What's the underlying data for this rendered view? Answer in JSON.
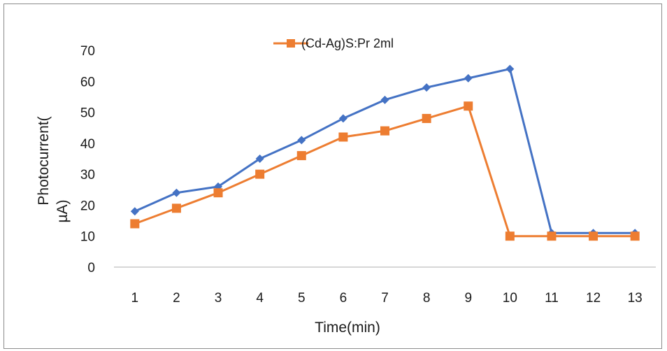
{
  "chart_data": {
    "type": "line",
    "title": "",
    "xlabel": "Time(min)",
    "ylabel": "Photocurrent( µA)",
    "ylabel_lines": [
      "Photocurrent(",
      "µA)"
    ],
    "categories": [
      "1",
      "2",
      "3",
      "4",
      "5",
      "6",
      "7",
      "8",
      "9",
      "10",
      "11",
      "12",
      "13"
    ],
    "ylim": [
      0,
      70
    ],
    "yticks": [
      0,
      10,
      20,
      30,
      40,
      50,
      60,
      70
    ],
    "grid": false,
    "legend_position": "top",
    "series": [
      {
        "name": "",
        "color": "#4472c4",
        "marker": "diamond",
        "values": [
          18,
          24,
          26,
          35,
          41,
          48,
          54,
          58,
          61,
          64,
          11,
          11,
          11
        ]
      },
      {
        "name": "(Cd-Ag)S:Pr 2ml",
        "color": "#ed7d31",
        "marker": "square",
        "values": [
          14,
          19,
          24,
          30,
          36,
          42,
          44,
          48,
          52,
          10,
          10,
          10,
          10
        ]
      }
    ]
  }
}
